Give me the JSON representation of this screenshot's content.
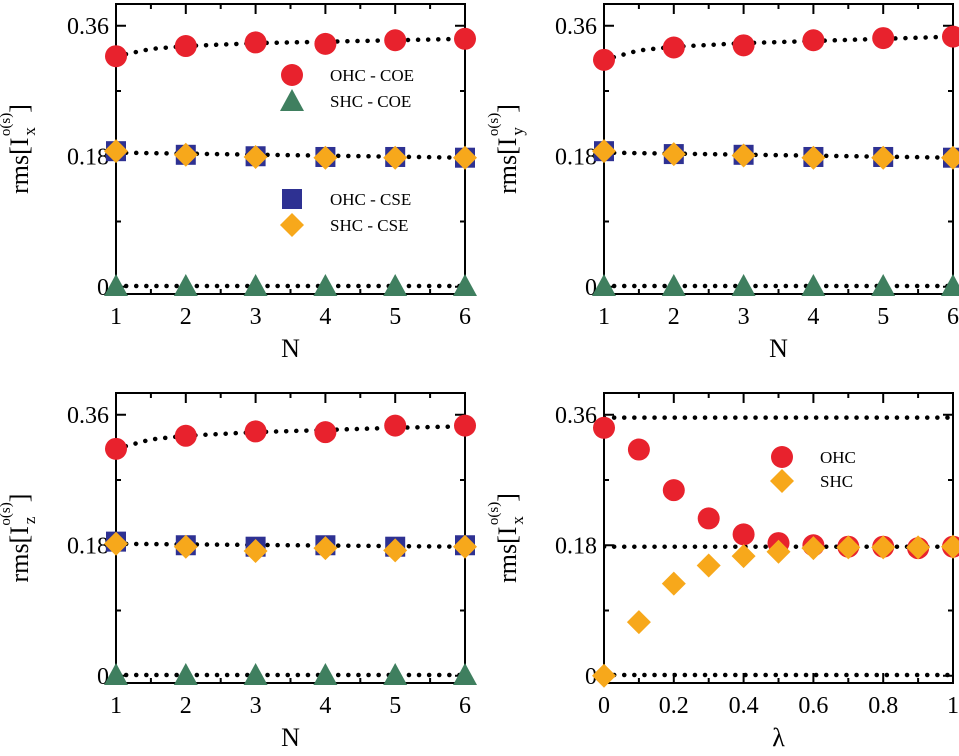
{
  "colors": {
    "ohc_coe": "#e8222d",
    "shc_coe": "#3f7f5f",
    "ohc_cse": "#2e3192",
    "shc_cse": "#f7a81b"
  },
  "chart_data": [
    {
      "type": "scatter",
      "panel": "top-left",
      "xlabel": "N",
      "ylabel_prefix": "rms[I",
      "ylabel_sub": "x",
      "ylabel_sup": "o(s)",
      "ylabel_suffix": "]",
      "xlim": [
        1,
        6
      ],
      "ylim": [
        -0.01,
        0.39
      ],
      "xticks": [
        1,
        2,
        3,
        4,
        5,
        6
      ],
      "xtick_labels": [
        "1",
        "2",
        "3",
        "4",
        "5",
        "6"
      ],
      "yticks": [
        0,
        0.18,
        0.36
      ],
      "ytick_labels": [
        "0",
        "0.18",
        "0.36"
      ],
      "x": [
        1,
        2,
        3,
        4,
        5,
        6
      ],
      "series": [
        {
          "name": "OHC - COE",
          "marker": "circle",
          "color_key": "ohc_coe",
          "values": [
            0.318,
            0.332,
            0.337,
            0.335,
            0.34,
            0.342
          ]
        },
        {
          "name": "SHC - COE",
          "marker": "triangle",
          "color_key": "shc_coe",
          "values": [
            0.001,
            0.001,
            0.001,
            0.001,
            0.001,
            0.001
          ]
        },
        {
          "name": "OHC - CSE",
          "marker": "square",
          "color_key": "ohc_cse",
          "values": [
            0.187,
            0.182,
            0.18,
            0.179,
            0.179,
            0.178
          ]
        },
        {
          "name": "SHC - CSE",
          "marker": "diamond",
          "color_key": "shc_cse",
          "values": [
            0.187,
            0.182,
            0.179,
            0.178,
            0.178,
            0.178
          ]
        }
      ],
      "fit_lines": [
        {
          "x": [
            1,
            1.5,
            2,
            3,
            4,
            5,
            6
          ],
          "values": [
            0.318,
            0.328,
            0.332,
            0.336,
            0.338,
            0.34,
            0.342
          ]
        },
        {
          "x": [
            1,
            6
          ],
          "values": [
            0.185,
            0.178
          ]
        },
        {
          "x": [
            1,
            6
          ],
          "values": [
            0.001,
            0.001
          ]
        }
      ],
      "legend": "center-right"
    },
    {
      "type": "scatter",
      "panel": "top-right",
      "xlabel": "N",
      "ylabel_prefix": "rms[I",
      "ylabel_sub": "y",
      "ylabel_sup": "o(s)",
      "ylabel_suffix": "]",
      "xlim": [
        1,
        6
      ],
      "ylim": [
        -0.01,
        0.39
      ],
      "xticks": [
        1,
        2,
        3,
        4,
        5,
        6
      ],
      "xtick_labels": [
        "1",
        "2",
        "3",
        "4",
        "5",
        "6"
      ],
      "yticks": [
        0,
        0.18,
        0.36
      ],
      "ytick_labels": [
        "0",
        "0.18",
        "0.36"
      ],
      "x": [
        1,
        2,
        3,
        4,
        5,
        6
      ],
      "series": [
        {
          "marker": "circle",
          "color_key": "ohc_coe",
          "values": [
            0.313,
            0.33,
            0.333,
            0.34,
            0.343,
            0.345
          ]
        },
        {
          "marker": "triangle",
          "color_key": "shc_coe",
          "values": [
            0.001,
            0.001,
            0.001,
            0.001,
            0.001,
            0.001
          ]
        },
        {
          "marker": "square",
          "color_key": "ohc_cse",
          "values": [
            0.187,
            0.183,
            0.182,
            0.179,
            0.179,
            0.178
          ]
        },
        {
          "marker": "diamond",
          "color_key": "shc_cse",
          "values": [
            0.187,
            0.183,
            0.181,
            0.178,
            0.178,
            0.178
          ]
        }
      ],
      "fit_lines": [
        {
          "x": [
            1,
            1.5,
            2,
            3,
            4,
            5,
            6
          ],
          "values": [
            0.313,
            0.326,
            0.331,
            0.336,
            0.339,
            0.342,
            0.345
          ]
        },
        {
          "x": [
            1,
            6
          ],
          "values": [
            0.185,
            0.178
          ]
        },
        {
          "x": [
            1,
            6
          ],
          "values": [
            0.001,
            0.001
          ]
        }
      ]
    },
    {
      "type": "scatter",
      "panel": "bottom-left",
      "xlabel": "N",
      "ylabel_prefix": "rms[I",
      "ylabel_sub": "z",
      "ylabel_sup": "o(s)",
      "ylabel_suffix": "]",
      "xlim": [
        1,
        6
      ],
      "ylim": [
        -0.01,
        0.39
      ],
      "xticks": [
        1,
        2,
        3,
        4,
        5,
        6
      ],
      "xtick_labels": [
        "1",
        "2",
        "3",
        "4",
        "5",
        "6"
      ],
      "yticks": [
        0,
        0.18,
        0.36
      ],
      "ytick_labels": [
        "0",
        "0.18",
        "0.36"
      ],
      "x": [
        1,
        2,
        3,
        4,
        5,
        6
      ],
      "series": [
        {
          "marker": "circle",
          "color_key": "ohc_coe",
          "values": [
            0.313,
            0.331,
            0.337,
            0.336,
            0.345,
            0.345
          ]
        },
        {
          "marker": "triangle",
          "color_key": "shc_coe",
          "values": [
            0.001,
            0.001,
            0.001,
            0.001,
            0.001,
            0.001
          ]
        },
        {
          "marker": "square",
          "color_key": "ohc_cse",
          "values": [
            0.185,
            0.18,
            0.178,
            0.18,
            0.178,
            0.18
          ]
        },
        {
          "marker": "diamond",
          "color_key": "shc_cse",
          "values": [
            0.182,
            0.178,
            0.172,
            0.176,
            0.173,
            0.178
          ]
        }
      ],
      "fit_lines": [
        {
          "x": [
            1,
            1.5,
            2,
            3,
            4,
            5,
            6
          ],
          "values": [
            0.313,
            0.326,
            0.331,
            0.336,
            0.339,
            0.342,
            0.344
          ]
        },
        {
          "x": [
            1,
            6
          ],
          "values": [
            0.182,
            0.178
          ]
        },
        {
          "x": [
            1,
            6
          ],
          "values": [
            0.001,
            0.001
          ]
        }
      ]
    },
    {
      "type": "scatter",
      "panel": "bottom-right",
      "xlabel": "λ",
      "ylabel_prefix": "rms[I",
      "ylabel_sub": "x",
      "ylabel_sup": "o(s)",
      "ylabel_suffix": "]",
      "xlim": [
        0,
        1
      ],
      "ylim": [
        -0.01,
        0.39
      ],
      "xticks": [
        0,
        0.2,
        0.4,
        0.6,
        0.8,
        1
      ],
      "xtick_labels": [
        "0",
        "0.2",
        "0.4",
        "0.6",
        "0.8",
        "1"
      ],
      "yticks": [
        0,
        0.18,
        0.36
      ],
      "ytick_labels": [
        "0",
        "0.18",
        "0.36"
      ],
      "x": [
        0,
        0.1,
        0.2,
        0.3,
        0.4,
        0.5,
        0.6,
        0.7,
        0.8,
        0.9,
        1.0
      ],
      "series": [
        {
          "name": "OHC",
          "marker": "circle",
          "color_key": "ohc_coe",
          "values": [
            0.342,
            0.312,
            0.256,
            0.217,
            0.195,
            0.183,
            0.18,
            0.178,
            0.178,
            0.176,
            0.178
          ]
        },
        {
          "name": "SHC",
          "marker": "diamond",
          "color_key": "shc_cse",
          "values": [
            0.0,
            0.074,
            0.127,
            0.152,
            0.165,
            0.171,
            0.176,
            0.177,
            0.177,
            0.177,
            0.178
          ]
        }
      ],
      "fit_lines": [
        {
          "x": [
            0,
            1
          ],
          "values": [
            0.356,
            0.356
          ]
        },
        {
          "x": [
            0,
            1
          ],
          "values": [
            0.178,
            0.178
          ]
        },
        {
          "x": [
            0,
            1
          ],
          "values": [
            0.001,
            0.001
          ]
        }
      ],
      "legend": "top-right"
    }
  ]
}
